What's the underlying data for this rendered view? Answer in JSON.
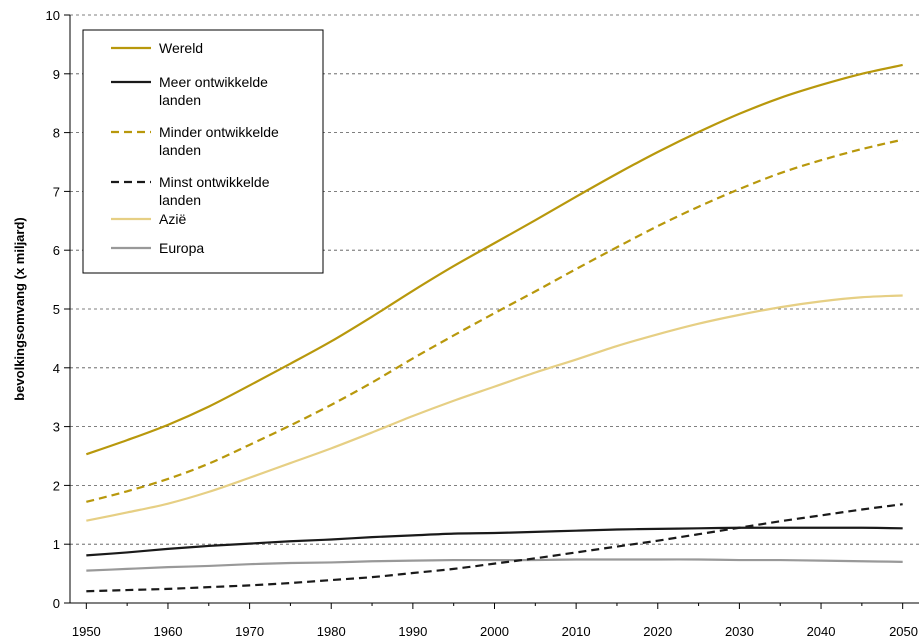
{
  "chart_data": {
    "type": "line",
    "ylabel": "bevolkingsomvang (x miljard)",
    "xlabel": "",
    "xlim": [
      1948,
      2052
    ],
    "ylim": [
      0,
      10
    ],
    "x_ticks": [
      1950,
      1960,
      1970,
      1980,
      1990,
      2000,
      2010,
      2020,
      2030,
      2040,
      2050
    ],
    "y_ticks": [
      0,
      1,
      2,
      3,
      4,
      5,
      6,
      7,
      8,
      9,
      10
    ],
    "grid": "horizontal dashed",
    "legend_position": "top-left",
    "x": [
      1950,
      1955,
      1960,
      1965,
      1970,
      1975,
      1980,
      1985,
      1990,
      1995,
      2000,
      2005,
      2010,
      2015,
      2020,
      2025,
      2030,
      2035,
      2040,
      2045,
      2050
    ],
    "series": [
      {
        "name": "Wereld",
        "color": "#b8980c",
        "style": "solid",
        "values": [
          2.53,
          2.77,
          3.03,
          3.34,
          3.7,
          4.07,
          4.45,
          4.87,
          5.31,
          5.73,
          6.12,
          6.51,
          6.91,
          7.3,
          7.67,
          8.01,
          8.32,
          8.59,
          8.81,
          9.0,
          9.15
        ]
      },
      {
        "name": "Meer ontwikkelde landen",
        "color": "#1a1a1a",
        "style": "solid",
        "values": [
          0.81,
          0.86,
          0.92,
          0.97,
          1.01,
          1.05,
          1.08,
          1.12,
          1.15,
          1.18,
          1.19,
          1.21,
          1.23,
          1.25,
          1.26,
          1.27,
          1.28,
          1.28,
          1.28,
          1.28,
          1.27
        ]
      },
      {
        "name": "Minder ontwikkelde landen",
        "color": "#b8980c",
        "style": "dashed",
        "values": [
          1.72,
          1.9,
          2.11,
          2.37,
          2.69,
          3.02,
          3.37,
          3.75,
          4.16,
          4.55,
          4.93,
          5.3,
          5.68,
          6.05,
          6.41,
          6.74,
          7.04,
          7.31,
          7.53,
          7.72,
          7.88
        ]
      },
      {
        "name": "Minst ontwikkelde landen",
        "color": "#1a1a1a",
        "style": "dashed",
        "values": [
          0.2,
          0.22,
          0.24,
          0.27,
          0.3,
          0.34,
          0.39,
          0.44,
          0.51,
          0.58,
          0.67,
          0.76,
          0.86,
          0.96,
          1.06,
          1.17,
          1.28,
          1.39,
          1.49,
          1.59,
          1.68
        ]
      },
      {
        "name": "Azië",
        "color": "#e6cf84",
        "style": "solid",
        "values": [
          1.4,
          1.54,
          1.69,
          1.89,
          2.13,
          2.38,
          2.63,
          2.9,
          3.18,
          3.44,
          3.68,
          3.92,
          4.14,
          4.37,
          4.57,
          4.75,
          4.9,
          5.03,
          5.13,
          5.2,
          5.23
        ]
      },
      {
        "name": "Europa",
        "color": "#999999",
        "style": "solid",
        "values": [
          0.55,
          0.58,
          0.61,
          0.63,
          0.66,
          0.68,
          0.69,
          0.71,
          0.72,
          0.73,
          0.73,
          0.73,
          0.74,
          0.74,
          0.74,
          0.74,
          0.73,
          0.73,
          0.72,
          0.71,
          0.7
        ]
      }
    ],
    "legend": [
      {
        "label_lines": [
          "Wereld"
        ]
      },
      {
        "label_lines": [
          "Meer ontwikkelde",
          "landen"
        ]
      },
      {
        "label_lines": [
          "Minder ontwikkelde",
          "landen"
        ]
      },
      {
        "label_lines": [
          "Minst ontwikkelde",
          "landen"
        ]
      },
      {
        "label_lines": [
          "Azië"
        ]
      },
      {
        "label_lines": [
          "Europa"
        ]
      }
    ]
  }
}
